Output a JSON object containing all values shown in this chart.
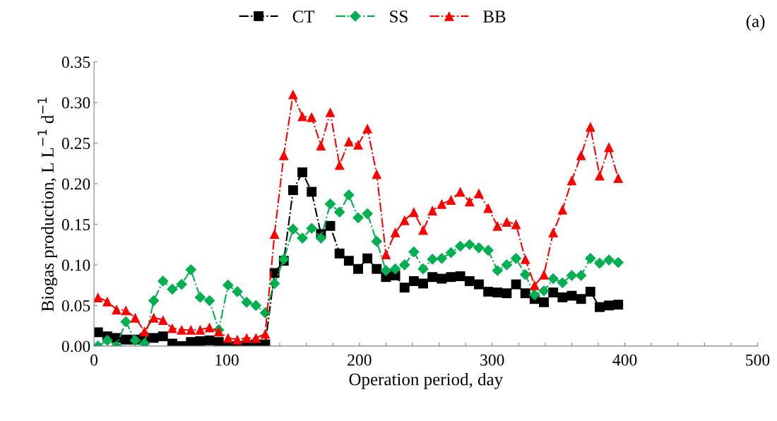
{
  "chart_data": {
    "type": "line",
    "xlabel": "Operation period, day",
    "ylabel": "Biogas production, L L$^{−1}$ d$^{−1}$",
    "annotations": [
      "(a)"
    ],
    "x": [
      3,
      10,
      17,
      24,
      31,
      38,
      45,
      52,
      59,
      66,
      73,
      80,
      87,
      94,
      101,
      108,
      115,
      122,
      129,
      136,
      143,
      150,
      157,
      164,
      171,
      178,
      185,
      192,
      199,
      206,
      213,
      220,
      227,
      234,
      241,
      248,
      255,
      262,
      269,
      276,
      283,
      290,
      297,
      304,
      311,
      318,
      325,
      332,
      339,
      346,
      353,
      360,
      367,
      374,
      381,
      388,
      395
    ],
    "series": [
      {
        "name": "CT",
        "color": "#000000",
        "marker": "square",
        "line_style": "dashdot",
        "values": [
          0.017,
          0.012,
          0.01,
          0.008,
          0.008,
          0.01,
          0.01,
          0.012,
          0.003,
          0.0,
          0.005,
          0.006,
          0.007,
          0.005,
          0.0,
          0.0,
          0.001,
          0.002,
          0.002,
          0.09,
          0.105,
          0.192,
          0.214,
          0.19,
          0.138,
          0.148,
          0.114,
          0.105,
          0.095,
          0.108,
          0.095,
          0.085,
          0.087,
          0.072,
          0.08,
          0.077,
          0.085,
          0.083,
          0.085,
          0.086,
          0.08,
          0.076,
          0.067,
          0.066,
          0.065,
          0.076,
          0.065,
          0.058,
          0.054,
          0.066,
          0.06,
          0.062,
          0.058,
          0.067,
          0.048,
          0.05,
          0.051
        ]
      },
      {
        "name": "SS",
        "color": "#00b050",
        "marker": "diamond",
        "line_style": "dashdot",
        "values": [
          0.0,
          0.007,
          0.0,
          0.03,
          0.007,
          0.003,
          0.056,
          0.08,
          0.07,
          0.076,
          0.094,
          0.06,
          0.056,
          0.02,
          0.075,
          0.067,
          0.054,
          0.05,
          0.041,
          0.077,
          0.107,
          0.144,
          0.133,
          0.145,
          0.133,
          0.175,
          0.165,
          0.186,
          0.158,
          0.163,
          0.129,
          0.093,
          0.095,
          0.1,
          0.116,
          0.095,
          0.107,
          0.108,
          0.115,
          0.123,
          0.125,
          0.121,
          0.118,
          0.093,
          0.1,
          0.108,
          0.088,
          0.063,
          0.068,
          0.083,
          0.078,
          0.087,
          0.087,
          0.108,
          0.102,
          0.106,
          0.103
        ]
      },
      {
        "name": "BB",
        "color": "#ff0000",
        "marker": "triangle",
        "line_style": "dashdot",
        "values": [
          0.06,
          0.055,
          0.045,
          0.044,
          0.035,
          0.018,
          0.035,
          0.032,
          0.022,
          0.02,
          0.02,
          0.02,
          0.023,
          0.018,
          0.01,
          0.008,
          0.01,
          0.01,
          0.015,
          0.138,
          0.235,
          0.31,
          0.283,
          0.282,
          0.247,
          0.288,
          0.223,
          0.252,
          0.248,
          0.268,
          0.212,
          0.113,
          0.14,
          0.155,
          0.165,
          0.143,
          0.167,
          0.175,
          0.18,
          0.19,
          0.178,
          0.188,
          0.17,
          0.148,
          0.153,
          0.15,
          0.107,
          0.075,
          0.088,
          0.14,
          0.168,
          0.204,
          0.235,
          0.27,
          0.21,
          0.245,
          0.207
        ]
      }
    ],
    "xlim": [
      0,
      500
    ],
    "xticks": [
      0,
      {
        "value": 20,
        "label": null
      },
      {
        "value": 40,
        "label": null
      },
      {
        "value": 60,
        "label": null
      },
      {
        "value": 80,
        "label": null
      },
      100,
      {
        "value": 120,
        "label": null
      },
      {
        "value": 140,
        "label": null
      },
      {
        "value": 160,
        "label": null
      },
      {
        "value": 180,
        "label": null
      },
      200,
      {
        "value": 220,
        "label": null
      },
      {
        "value": 240,
        "label": null
      },
      {
        "value": 260,
        "label": null
      },
      {
        "value": 280,
        "label": null
      },
      300,
      {
        "value": 320,
        "label": null
      },
      {
        "value": 340,
        "label": null
      },
      {
        "value": 360,
        "label": null
      },
      {
        "value": 380,
        "label": null
      },
      400,
      {
        "value": 420,
        "label": null
      },
      {
        "value": 440,
        "label": null
      },
      {
        "value": 460,
        "label": null
      },
      {
        "value": 480,
        "label": null
      },
      500
    ],
    "ylim": [
      0,
      0.35
    ],
    "yticks": [
      {
        "value": 0,
        "label": "0.00"
      },
      {
        "value": 0.05,
        "label": "0.05"
      },
      {
        "value": 0.1,
        "label": "0.10"
      },
      {
        "value": 0.15,
        "label": "0.15"
      },
      {
        "value": 0.2,
        "label": "0.20"
      },
      {
        "value": 0.25,
        "label": "0.25"
      },
      {
        "value": 0.3,
        "label": "0.30"
      },
      {
        "value": 0.35,
        "label": "0.35"
      }
    ],
    "grid": false,
    "legend": "top"
  }
}
